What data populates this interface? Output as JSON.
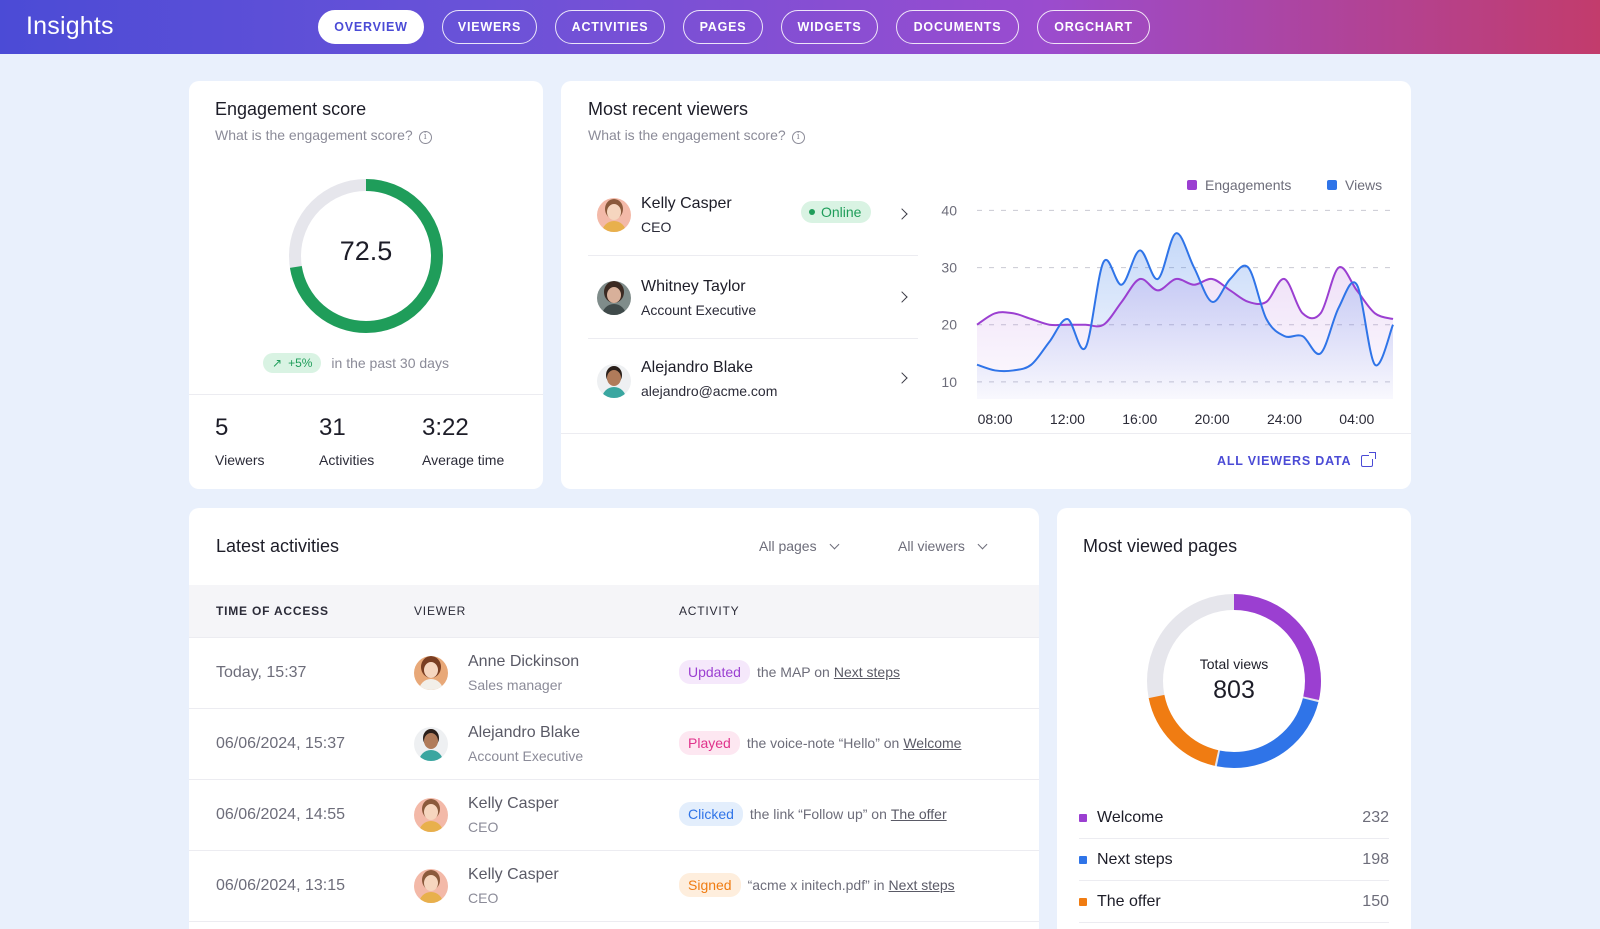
{
  "app": {
    "title": "Insights"
  },
  "nav": {
    "tabs": [
      {
        "label": "OVERVIEW",
        "active": true
      },
      {
        "label": "VIEWERS"
      },
      {
        "label": "ACTIVITIES"
      },
      {
        "label": "PAGES"
      },
      {
        "label": "WIDGETS"
      },
      {
        "label": "DOCUMENTS"
      },
      {
        "label": "ORGCHART"
      }
    ]
  },
  "engagement": {
    "title": "Engagement score",
    "subtitle": "What is the engagement score?",
    "score": "72.5",
    "score_fraction": 0.725,
    "trend_value": "+5%",
    "trend_text": "in the past 30 days",
    "stats": [
      {
        "value": "5",
        "label": "Viewers"
      },
      {
        "value": "31",
        "label": "Activities"
      },
      {
        "value": "3:22",
        "label": "Average time"
      }
    ],
    "colors": {
      "ring": "#1f9d5a",
      "track": "#e6e6ec"
    }
  },
  "recent_viewers": {
    "title": "Most recent viewers",
    "subtitle": "What is the engagement score?",
    "items": [
      {
        "name": "Kelly Casper",
        "role": "CEO",
        "status": "Online"
      },
      {
        "name": "Whitney Taylor",
        "role": "Account Executive"
      },
      {
        "name": "Alejandro Blake",
        "role": "alejandro@acme.com"
      }
    ],
    "all_link": "ALL VIEWERS DATA"
  },
  "chart_data": {
    "type": "area",
    "x": [
      "07:00",
      "08:00",
      "09:00",
      "10:00",
      "11:00",
      "12:00",
      "13:00",
      "14:00",
      "15:00",
      "16:00",
      "17:00",
      "18:00",
      "19:00",
      "20:00",
      "21:00",
      "22:00",
      "23:00",
      "24:00",
      "01:00",
      "02:00",
      "03:00",
      "04:00",
      "05:00",
      "06:00"
    ],
    "x_ticks": [
      "08:00",
      "12:00",
      "16:00",
      "20:00",
      "24:00",
      "04:00"
    ],
    "y_ticks": [
      10,
      20,
      30,
      40
    ],
    "ylim": [
      7,
      42
    ],
    "series": [
      {
        "name": "Engagements",
        "color": "#9b3fd1",
        "values": [
          20,
          22,
          22,
          21,
          20,
          20,
          20,
          20,
          24,
          28,
          26,
          28,
          27,
          28,
          26,
          24,
          24,
          28,
          22,
          22,
          30,
          26,
          22,
          21
        ]
      },
      {
        "name": "Views",
        "color": "#2f74e8",
        "values": [
          13,
          12,
          12,
          13,
          17,
          21,
          16,
          31,
          27,
          33,
          28,
          36,
          30,
          24,
          28,
          30,
          21,
          18,
          18,
          15,
          23,
          27,
          13,
          20
        ]
      }
    ],
    "legend_position": "top-right",
    "grid": true
  },
  "activities": {
    "title": "Latest activities",
    "filters": [
      "All pages",
      "All viewers"
    ],
    "columns": [
      "TIME OF ACCESS",
      "VIEWER",
      "ACTIVITY"
    ],
    "rows": [
      {
        "time": "Today, 15:37",
        "name": "Anne Dickinson",
        "role": "Sales manager",
        "action": "Updated",
        "detail": "the MAP on",
        "link": "Next steps",
        "badge_bg": "#f5e8fb",
        "badge_fg": "#9b3fd1"
      },
      {
        "time": "06/06/2024, 15:37",
        "name": "Alejandro Blake",
        "role": "Account Executive",
        "action": "Played",
        "detail": "the voice-note “Hello” on",
        "link": "Welcome",
        "badge_bg": "#fde7f1",
        "badge_fg": "#e0338c"
      },
      {
        "time": "06/06/2024, 14:55",
        "name": "Kelly Casper",
        "role": "CEO",
        "action": "Clicked",
        "detail": "the link “Follow up” on",
        "link": "The offer",
        "badge_bg": "#e3eefc",
        "badge_fg": "#2f74e8"
      },
      {
        "time": "06/06/2024, 13:15",
        "name": "Kelly Casper",
        "role": "CEO",
        "action": "Signed",
        "detail": "“acme x initech.pdf” in",
        "link": "Next steps",
        "badge_bg": "#feeedd",
        "badge_fg": "#f07c12"
      }
    ]
  },
  "most_viewed": {
    "title": "Most viewed pages",
    "center_label": "Total views",
    "total": "803",
    "pages": [
      {
        "label": "Welcome",
        "value": 232,
        "color": "#9b3fd1"
      },
      {
        "label": "Next steps",
        "value": 198,
        "color": "#2f74e8"
      },
      {
        "label": "The offer",
        "value": 150,
        "color": "#f07c12"
      }
    ],
    "track_color": "#e6e6ec"
  }
}
